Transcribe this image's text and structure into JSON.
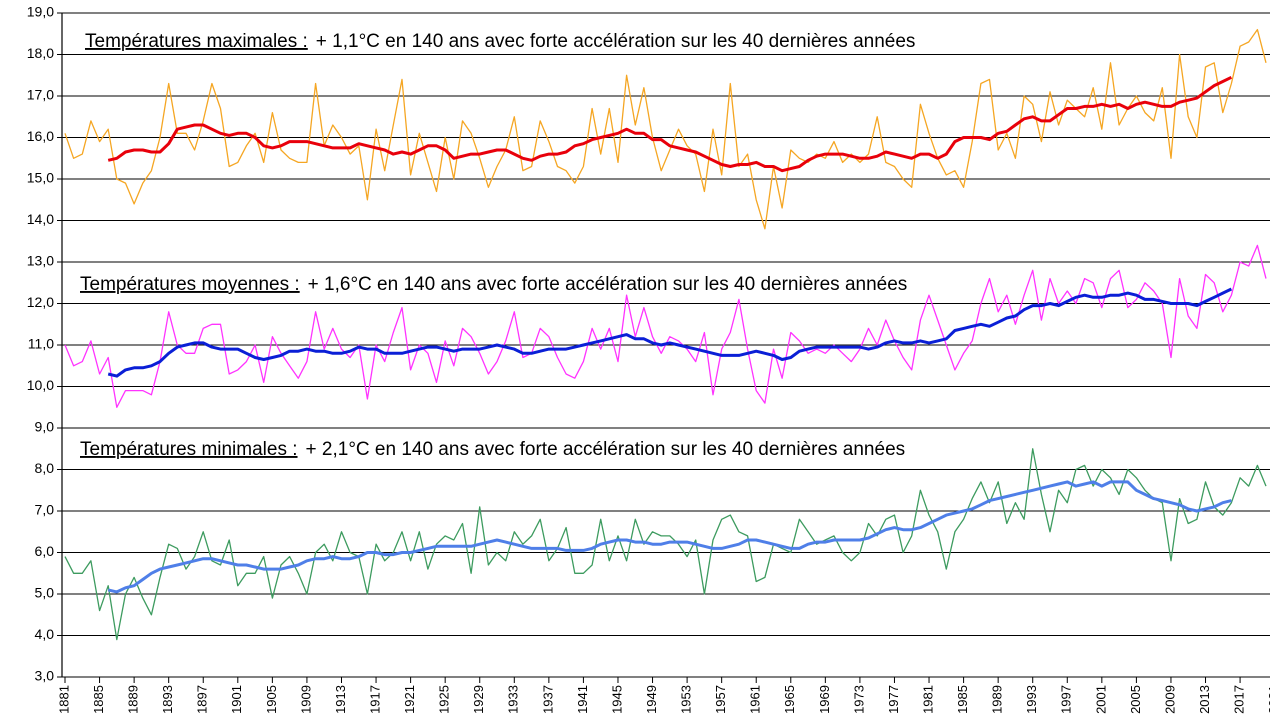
{
  "chart_data": {
    "type": "line",
    "annotations": [
      {
        "label": "Températures maximales :",
        "text": "+ 1,1°C en 140 ans avec forte accélération sur les 40 dernières années"
      },
      {
        "label": "Températures moyennes :",
        "text": "+ 1,6°C en 140 ans avec forte accélération sur les 40 dernières années"
      },
      {
        "label": "Températures minimales :",
        "text": "+ 2,1°C en 140 ans avec forte accélération sur les 40 dernières années"
      }
    ],
    "x": [
      1881,
      1882,
      1883,
      1884,
      1885,
      1886,
      1887,
      1888,
      1889,
      1890,
      1891,
      1892,
      1893,
      1894,
      1895,
      1896,
      1897,
      1898,
      1899,
      1900,
      1901,
      1902,
      1903,
      1904,
      1905,
      1906,
      1907,
      1908,
      1909,
      1910,
      1911,
      1912,
      1913,
      1914,
      1915,
      1916,
      1917,
      1918,
      1919,
      1920,
      1921,
      1922,
      1923,
      1924,
      1925,
      1926,
      1927,
      1928,
      1929,
      1930,
      1931,
      1932,
      1933,
      1934,
      1935,
      1936,
      1937,
      1938,
      1939,
      1940,
      1941,
      1942,
      1943,
      1944,
      1945,
      1946,
      1947,
      1948,
      1949,
      1950,
      1951,
      1952,
      1953,
      1954,
      1955,
      1956,
      1957,
      1958,
      1959,
      1960,
      1961,
      1962,
      1963,
      1964,
      1965,
      1966,
      1967,
      1968,
      1969,
      1970,
      1971,
      1972,
      1973,
      1974,
      1975,
      1976,
      1977,
      1978,
      1979,
      1980,
      1981,
      1982,
      1983,
      1984,
      1985,
      1986,
      1987,
      1988,
      1989,
      1990,
      1991,
      1992,
      1993,
      1994,
      1995,
      1996,
      1997,
      1998,
      1999,
      2000,
      2001,
      2002,
      2003,
      2004,
      2005,
      2006,
      2007,
      2008,
      2009,
      2010,
      2011,
      2012,
      2013,
      2014,
      2015,
      2016,
      2017,
      2018,
      2019,
      2020
    ],
    "xlim": [
      1881,
      2020
    ],
    "xticks": [
      1881,
      1885,
      1889,
      1893,
      1897,
      1901,
      1905,
      1909,
      1913,
      1917,
      1921,
      1925,
      1929,
      1933,
      1937,
      1941,
      1945,
      1949,
      1953,
      1957,
      1961,
      1965,
      1969,
      1973,
      1977,
      1981,
      1985,
      1989,
      1993,
      1997,
      2001,
      2005,
      2009,
      2013,
      2017,
      2021
    ],
    "ylim": [
      3,
      19
    ],
    "yticks": [
      {
        "value": 3,
        "label": "3,0"
      },
      {
        "value": 4,
        "label": "4,0"
      },
      {
        "value": 5,
        "label": "5,0"
      },
      {
        "value": 6,
        "label": "6,0"
      },
      {
        "value": 7,
        "label": "7,0"
      },
      {
        "value": 8,
        "label": "8,0"
      },
      {
        "value": 9,
        "label": "9,0"
      },
      {
        "value": 10,
        "label": "10,0"
      },
      {
        "value": 11,
        "label": "11,0"
      },
      {
        "value": 12,
        "label": "12,0"
      },
      {
        "value": 13,
        "label": "13,0"
      },
      {
        "value": 14,
        "label": "14,0"
      },
      {
        "value": 15,
        "label": "15,0"
      },
      {
        "value": 16,
        "label": "16,0"
      },
      {
        "value": 17,
        "label": "17,0"
      },
      {
        "value": 18,
        "label": "18,0"
      },
      {
        "value": 19,
        "label": "19,0"
      }
    ],
    "grid": true,
    "series": [
      {
        "color": "#f5a623",
        "line_width": 1.3,
        "values": [
          16.1,
          15.5,
          15.6,
          16.4,
          15.9,
          16.2,
          15.0,
          14.9,
          14.4,
          14.9,
          15.2,
          16.0,
          17.3,
          16.1,
          16.1,
          15.7,
          16.4,
          17.3,
          16.7,
          15.3,
          15.4,
          15.8,
          16.1,
          15.4,
          16.6,
          15.7,
          15.5,
          15.4,
          15.4,
          17.3,
          15.8,
          16.3,
          16.0,
          15.6,
          15.8,
          14.5,
          16.2,
          15.2,
          16.3,
          17.4,
          15.1,
          16.1,
          15.4,
          14.7,
          16.0,
          15.0,
          16.4,
          16.1,
          15.5,
          14.8,
          15.3,
          15.7,
          16.5,
          15.2,
          15.3,
          16.4,
          15.9,
          15.3,
          15.2,
          14.9,
          15.3,
          16.7,
          15.6,
          16.7,
          15.4,
          17.5,
          16.3,
          17.2,
          16.0,
          15.2,
          15.7,
          16.2,
          15.8,
          15.6,
          14.7,
          16.2,
          15.1,
          17.3,
          15.3,
          15.6,
          14.5,
          13.8,
          15.3,
          14.3,
          15.7,
          15.5,
          15.4,
          15.6,
          15.5,
          15.9,
          15.4,
          15.6,
          15.4,
          15.6,
          16.5,
          15.4,
          15.3,
          15.0,
          14.8,
          16.8,
          16.1,
          15.5,
          15.1,
          15.2,
          14.8,
          15.9,
          17.3,
          17.4,
          15.7,
          16.1,
          15.5,
          17.0,
          16.8,
          15.9,
          17.1,
          16.3,
          16.9,
          16.7,
          16.5,
          17.2,
          16.2,
          17.8,
          16.3,
          16.7,
          17.0,
          16.6,
          16.4,
          17.2,
          15.5,
          18.0,
          16.5,
          16.0,
          17.7,
          17.8,
          16.6,
          17.3,
          18.2,
          18.3,
          18.6,
          17.8
        ]
      },
      {
        "color": "#e8000b",
        "line_width": 3,
        "values": [
          null,
          null,
          null,
          null,
          null,
          15.45,
          15.5,
          15.65,
          15.7,
          15.7,
          15.65,
          15.65,
          15.85,
          16.2,
          16.25,
          16.3,
          16.3,
          16.2,
          16.1,
          16.05,
          16.1,
          16.1,
          16.0,
          15.8,
          15.75,
          15.8,
          15.9,
          15.9,
          15.9,
          15.85,
          15.8,
          15.75,
          15.75,
          15.75,
          15.85,
          15.8,
          15.75,
          15.7,
          15.6,
          15.65,
          15.6,
          15.7,
          15.8,
          15.8,
          15.7,
          15.5,
          15.55,
          15.6,
          15.6,
          15.65,
          15.7,
          15.7,
          15.6,
          15.5,
          15.45,
          15.55,
          15.6,
          15.6,
          15.65,
          15.8,
          15.85,
          15.95,
          16.0,
          16.05,
          16.1,
          16.2,
          16.1,
          16.1,
          15.95,
          15.95,
          15.8,
          15.75,
          15.7,
          15.65,
          15.55,
          15.45,
          15.35,
          15.3,
          15.35,
          15.35,
          15.4,
          15.3,
          15.3,
          15.2,
          15.25,
          15.3,
          15.45,
          15.55,
          15.6,
          15.6,
          15.6,
          15.55,
          15.5,
          15.5,
          15.55,
          15.65,
          15.6,
          15.55,
          15.5,
          15.6,
          15.6,
          15.5,
          15.6,
          15.9,
          16.0,
          16.0,
          16.0,
          15.95,
          16.1,
          16.15,
          16.3,
          16.45,
          16.5,
          16.4,
          16.4,
          16.55,
          16.7,
          16.7,
          16.75,
          16.75,
          16.8,
          16.75,
          16.8,
          16.7,
          16.8,
          16.85,
          16.8,
          16.75,
          16.75,
          16.85,
          16.9,
          16.95,
          17.1,
          17.25,
          17.35,
          17.45,
          null,
          null,
          null,
          null
        ]
      },
      {
        "color": "#ff33ff",
        "line_width": 1.3,
        "values": [
          11.0,
          10.5,
          10.6,
          11.1,
          10.3,
          10.7,
          9.5,
          9.9,
          9.9,
          9.9,
          9.8,
          10.6,
          11.8,
          11.0,
          10.8,
          10.8,
          11.4,
          11.5,
          11.5,
          10.3,
          10.4,
          10.6,
          11.0,
          10.1,
          11.2,
          10.8,
          10.5,
          10.2,
          10.6,
          11.8,
          10.9,
          11.4,
          10.9,
          10.7,
          11.0,
          9.7,
          11.0,
          10.6,
          11.3,
          11.9,
          10.4,
          11.0,
          10.8,
          10.1,
          11.1,
          10.5,
          11.4,
          11.2,
          10.8,
          10.3,
          10.6,
          11.1,
          11.8,
          10.7,
          10.8,
          11.4,
          11.2,
          10.7,
          10.3,
          10.2,
          10.6,
          11.4,
          10.9,
          11.4,
          10.6,
          12.2,
          11.2,
          11.9,
          11.2,
          10.8,
          11.2,
          11.1,
          10.9,
          10.6,
          11.3,
          9.8,
          10.9,
          11.3,
          12.1,
          10.9,
          9.9,
          9.6,
          10.9,
          10.2,
          11.3,
          11.1,
          10.8,
          10.9,
          10.8,
          11.0,
          10.8,
          10.6,
          10.9,
          11.4,
          11.0,
          11.6,
          11.1,
          10.7,
          10.4,
          11.6,
          12.2,
          11.6,
          11.0,
          10.4,
          10.8,
          11.1,
          12.0,
          12.6,
          11.8,
          12.2,
          11.5,
          12.2,
          12.8,
          11.6,
          12.6,
          12.0,
          12.3,
          12.0,
          12.6,
          12.5,
          11.9,
          12.6,
          12.8,
          11.9,
          12.1,
          12.5,
          12.3,
          12.0,
          10.7,
          12.6,
          11.7,
          11.4,
          12.7,
          12.5,
          11.8,
          12.2,
          13.0,
          12.9,
          13.4,
          12.6
        ]
      },
      {
        "color": "#0a1fd6",
        "line_width": 3,
        "values": [
          null,
          null,
          null,
          null,
          null,
          10.3,
          10.25,
          10.4,
          10.45,
          10.45,
          10.5,
          10.6,
          10.8,
          10.95,
          11.0,
          11.05,
          11.05,
          10.95,
          10.9,
          10.9,
          10.9,
          10.8,
          10.7,
          10.65,
          10.7,
          10.75,
          10.85,
          10.85,
          10.9,
          10.85,
          10.85,
          10.8,
          10.8,
          10.85,
          10.95,
          10.9,
          10.9,
          10.8,
          10.8,
          10.8,
          10.85,
          10.9,
          10.95,
          10.95,
          10.9,
          10.85,
          10.9,
          10.9,
          10.9,
          10.95,
          11.0,
          10.95,
          10.9,
          10.8,
          10.8,
          10.85,
          10.9,
          10.9,
          10.9,
          10.95,
          11.0,
          11.05,
          11.1,
          11.15,
          11.2,
          11.25,
          11.15,
          11.15,
          11.05,
          11.0,
          11.05,
          11.0,
          10.95,
          10.9,
          10.85,
          10.8,
          10.75,
          10.75,
          10.75,
          10.8,
          10.85,
          10.8,
          10.75,
          10.65,
          10.7,
          10.85,
          10.9,
          10.95,
          10.95,
          10.95,
          10.95,
          10.95,
          10.95,
          10.9,
          10.95,
          11.05,
          11.1,
          11.05,
          11.05,
          11.1,
          11.05,
          11.1,
          11.15,
          11.35,
          11.4,
          11.45,
          11.5,
          11.45,
          11.55,
          11.65,
          11.7,
          11.85,
          11.95,
          11.95,
          12.0,
          11.95,
          12.05,
          12.15,
          12.2,
          12.15,
          12.15,
          12.2,
          12.2,
          12.25,
          12.2,
          12.1,
          12.1,
          12.05,
          12.0,
          12.0,
          12.0,
          11.95,
          12.05,
          12.15,
          12.25,
          12.35,
          null,
          null,
          null,
          null
        ]
      },
      {
        "color": "#3d9b5f",
        "line_width": 1.3,
        "values": [
          5.9,
          5.5,
          5.5,
          5.8,
          4.6,
          5.2,
          3.9,
          5.0,
          5.4,
          4.9,
          4.5,
          5.4,
          6.2,
          6.1,
          5.6,
          5.9,
          6.5,
          5.8,
          5.7,
          6.3,
          5.2,
          5.5,
          5.5,
          5.9,
          4.9,
          5.7,
          5.9,
          5.5,
          5.0,
          6.0,
          6.2,
          5.8,
          6.5,
          6.0,
          5.9,
          5.0,
          6.2,
          5.8,
          6.0,
          6.5,
          5.8,
          6.5,
          5.6,
          6.2,
          6.4,
          6.3,
          6.7,
          5.5,
          7.1,
          5.7,
          6.0,
          5.8,
          6.5,
          6.2,
          6.4,
          6.8,
          5.8,
          6.1,
          6.6,
          5.5,
          5.5,
          5.7,
          6.8,
          5.8,
          6.4,
          5.8,
          6.8,
          6.2,
          6.5,
          6.4,
          6.4,
          6.2,
          5.9,
          6.3,
          5.0,
          6.3,
          6.8,
          6.9,
          6.5,
          6.4,
          5.3,
          5.4,
          6.2,
          6.1,
          6.0,
          6.8,
          6.5,
          6.2,
          6.3,
          6.4,
          6.0,
          5.8,
          6.0,
          6.7,
          6.4,
          6.8,
          6.9,
          6.0,
          6.4,
          7.5,
          6.9,
          6.5,
          5.6,
          6.5,
          6.8,
          7.3,
          7.7,
          7.2,
          7.7,
          6.7,
          7.2,
          6.8,
          8.5,
          7.4,
          6.5,
          7.5,
          7.2,
          8.0,
          8.1,
          7.6,
          8.0,
          7.8,
          7.4,
          8.0,
          7.8,
          7.5,
          7.3,
          7.2,
          5.8,
          7.3,
          6.7,
          6.8,
          7.7,
          7.1,
          6.9,
          7.2,
          7.8,
          7.6,
          8.1,
          7.6
        ]
      },
      {
        "color": "#4f7fe8",
        "line_width": 3,
        "values": [
          null,
          null,
          null,
          null,
          null,
          5.1,
          5.05,
          5.15,
          5.2,
          5.35,
          5.5,
          5.6,
          5.65,
          5.7,
          5.75,
          5.8,
          5.85,
          5.85,
          5.8,
          5.75,
          5.7,
          5.7,
          5.65,
          5.6,
          5.6,
          5.6,
          5.65,
          5.7,
          5.8,
          5.85,
          5.85,
          5.9,
          5.85,
          5.85,
          5.9,
          6.0,
          6.0,
          5.95,
          5.95,
          6.0,
          6.0,
          6.05,
          6.1,
          6.15,
          6.15,
          6.15,
          6.15,
          6.15,
          6.2,
          6.25,
          6.3,
          6.25,
          6.2,
          6.15,
          6.1,
          6.1,
          6.1,
          6.1,
          6.05,
          6.05,
          6.05,
          6.1,
          6.2,
          6.25,
          6.3,
          6.3,
          6.25,
          6.25,
          6.2,
          6.2,
          6.25,
          6.25,
          6.25,
          6.2,
          6.15,
          6.1,
          6.1,
          6.15,
          6.2,
          6.3,
          6.3,
          6.25,
          6.2,
          6.15,
          6.1,
          6.1,
          6.2,
          6.25,
          6.25,
          6.3,
          6.3,
          6.3,
          6.3,
          6.35,
          6.45,
          6.55,
          6.6,
          6.55,
          6.55,
          6.6,
          6.7,
          6.8,
          6.9,
          6.95,
          7.0,
          7.05,
          7.15,
          7.25,
          7.3,
          7.35,
          7.4,
          7.45,
          7.5,
          7.55,
          7.6,
          7.65,
          7.7,
          7.6,
          7.65,
          7.7,
          7.6,
          7.7,
          7.7,
          7.7,
          7.5,
          7.4,
          7.3,
          7.25,
          7.2,
          7.15,
          7.05,
          7.0,
          7.05,
          7.1,
          7.2,
          7.25,
          null,
          null,
          null,
          null
        ]
      }
    ]
  }
}
